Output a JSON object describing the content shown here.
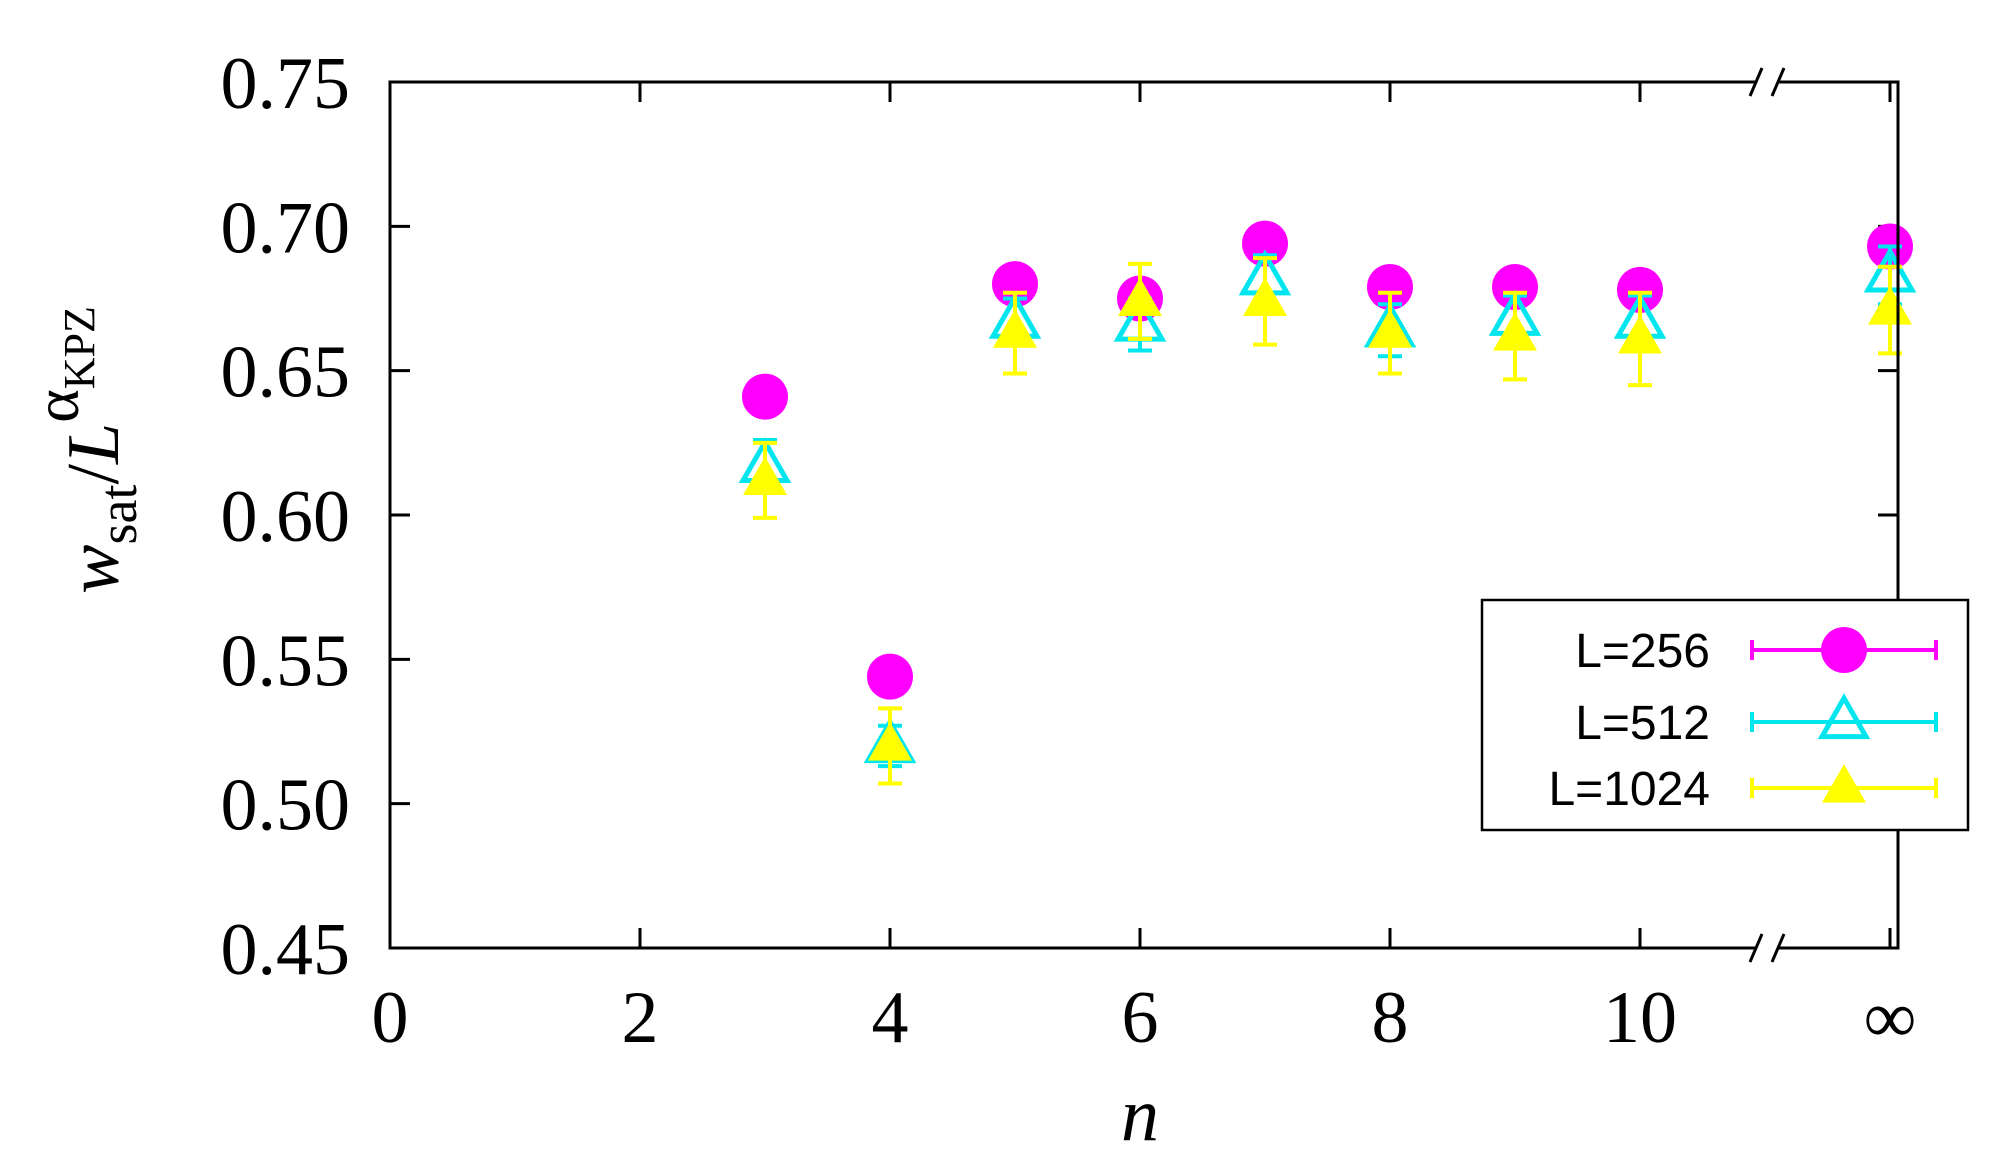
{
  "chart_data": {
    "type": "scatter",
    "title": "",
    "xlabel": "n",
    "ylabel": {
      "main": "w",
      "sub": "sat",
      "slash": "/",
      "base": "L",
      "exponent": "α",
      "exponent_sub": "KPZ"
    },
    "xlim": [
      0,
      11.8
    ],
    "ylim": [
      0.45,
      0.75
    ],
    "x_axis_break_at": 11.0,
    "x_ticks": [
      {
        "value": 0,
        "label": "0"
      },
      {
        "value": 2,
        "label": "2"
      },
      {
        "value": 4,
        "label": "4"
      },
      {
        "value": 6,
        "label": "6"
      },
      {
        "value": 8,
        "label": "8"
      },
      {
        "value": 10,
        "label": "10"
      },
      {
        "value": 12,
        "label": "∞"
      }
    ],
    "y_ticks": [
      {
        "value": 0.45,
        "label": "0.45"
      },
      {
        "value": 0.5,
        "label": "0.50"
      },
      {
        "value": 0.55,
        "label": "0.55"
      },
      {
        "value": 0.6,
        "label": "0.60"
      },
      {
        "value": 0.65,
        "label": "0.65"
      },
      {
        "value": 0.7,
        "label": "0.70"
      },
      {
        "value": 0.75,
        "label": "0.75"
      }
    ],
    "legend_position": "lower-right",
    "series": [
      {
        "name": "L=256",
        "marker": "filled-circle",
        "color": "#ff00ff",
        "points": [
          {
            "x": 3,
            "y": 0.641,
            "err": 0.0
          },
          {
            "x": 4,
            "y": 0.544,
            "err": 0.0
          },
          {
            "x": 5,
            "y": 0.68,
            "err": 0.0
          },
          {
            "x": 6,
            "y": 0.675,
            "err": 0.0
          },
          {
            "x": 7,
            "y": 0.694,
            "err": 0.0
          },
          {
            "x": 8,
            "y": 0.679,
            "err": 0.0
          },
          {
            "x": 9,
            "y": 0.679,
            "err": 0.0
          },
          {
            "x": 10,
            "y": 0.678,
            "err": 0.0
          },
          {
            "x": 12,
            "y": 0.693,
            "err": 0.0
          }
        ]
      },
      {
        "name": "L=512",
        "marker": "open-triangle",
        "color": "#00e5ee",
        "points": [
          {
            "x": 3,
            "y": 0.617,
            "err": 0.009
          },
          {
            "x": 4,
            "y": 0.52,
            "err": 0.007
          },
          {
            "x": 5,
            "y": 0.667,
            "err": 0.008
          },
          {
            "x": 6,
            "y": 0.666,
            "err": 0.009
          },
          {
            "x": 7,
            "y": 0.682,
            "err": 0.008
          },
          {
            "x": 8,
            "y": 0.664,
            "err": 0.009
          },
          {
            "x": 9,
            "y": 0.668,
            "err": 0.008
          },
          {
            "x": 10,
            "y": 0.667,
            "err": 0.009
          },
          {
            "x": 12,
            "y": 0.683,
            "err": 0.01
          }
        ]
      },
      {
        "name": "L=1024",
        "marker": "filled-triangle",
        "color": "#ffff00",
        "points": [
          {
            "x": 3,
            "y": 0.612,
            "err": 0.013
          },
          {
            "x": 4,
            "y": 0.52,
            "err": 0.013
          },
          {
            "x": 5,
            "y": 0.663,
            "err": 0.014
          },
          {
            "x": 6,
            "y": 0.674,
            "err": 0.013
          },
          {
            "x": 7,
            "y": 0.674,
            "err": 0.015
          },
          {
            "x": 8,
            "y": 0.663,
            "err": 0.014
          },
          {
            "x": 9,
            "y": 0.662,
            "err": 0.015
          },
          {
            "x": 10,
            "y": 0.661,
            "err": 0.016
          },
          {
            "x": 12,
            "y": 0.671,
            "err": 0.015
          }
        ]
      }
    ]
  }
}
